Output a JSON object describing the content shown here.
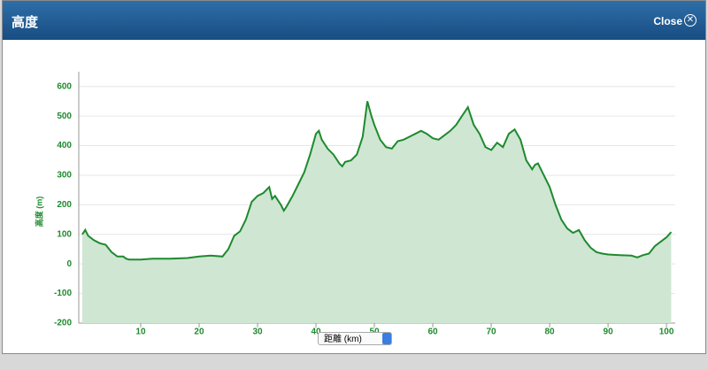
{
  "header": {
    "title": "高度",
    "close": "Close"
  },
  "chart_data": {
    "type": "area",
    "y_label": "高度 (m)",
    "x_label": "距離 (km)",
    "color": "#1e8a2e",
    "fill": "#cfe6d3",
    "grid": true,
    "xlim": [
      -0.6,
      101.5
    ],
    "ylim": [
      -200,
      650
    ],
    "xticks": [
      10,
      20,
      30,
      40,
      50,
      60,
      70,
      80,
      90,
      100
    ],
    "yticks": [
      -200,
      -100,
      0,
      100,
      200,
      300,
      400,
      500,
      600
    ],
    "x": [
      0,
      0.5,
      1,
      2,
      3,
      4,
      5,
      6,
      7,
      7.5,
      8,
      10,
      12,
      15,
      18,
      20,
      22,
      24,
      25,
      26,
      27,
      28,
      29,
      30,
      31,
      32,
      32.5,
      33,
      34,
      34.5,
      35,
      36,
      37,
      38,
      39,
      40,
      40.5,
      41,
      42,
      43,
      44,
      44.5,
      45,
      46,
      47,
      48,
      48.8,
      49.5,
      50,
      51,
      52,
      53,
      54,
      55,
      56,
      57,
      58,
      59,
      60,
      61,
      62,
      63,
      64,
      65,
      66,
      67,
      68,
      69,
      70,
      71,
      72,
      73,
      74,
      75,
      76,
      77,
      77.5,
      78,
      79,
      80,
      81,
      82,
      83,
      84,
      85,
      86,
      87,
      88,
      89,
      90,
      92,
      94,
      95,
      96,
      97,
      98,
      99,
      100,
      100.8
    ],
    "values": [
      100,
      115,
      95,
      80,
      70,
      65,
      40,
      25,
      25,
      18,
      15,
      15,
      18,
      18,
      20,
      25,
      28,
      25,
      50,
      95,
      110,
      150,
      210,
      230,
      240,
      260,
      220,
      230,
      200,
      180,
      195,
      230,
      270,
      310,
      370,
      440,
      450,
      420,
      390,
      370,
      340,
      330,
      345,
      350,
      370,
      430,
      550,
      500,
      470,
      420,
      395,
      390,
      415,
      420,
      430,
      440,
      450,
      440,
      425,
      420,
      435,
      450,
      470,
      500,
      530,
      470,
      440,
      395,
      385,
      410,
      395,
      440,
      455,
      420,
      350,
      320,
      335,
      340,
      300,
      260,
      200,
      150,
      120,
      105,
      115,
      80,
      55,
      40,
      35,
      32,
      30,
      28,
      22,
      30,
      35,
      60,
      75,
      90,
      108
    ]
  }
}
